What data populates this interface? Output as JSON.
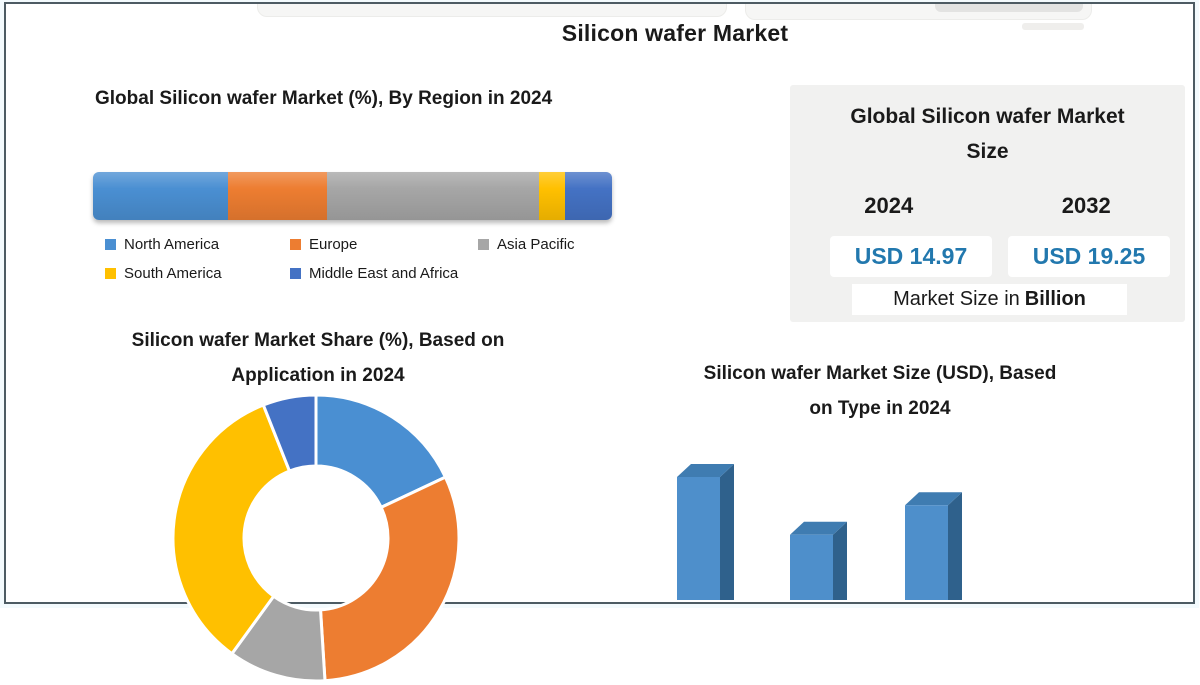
{
  "page": {
    "title": "Silicon wafer Market",
    "frame_color": "#4d5b63"
  },
  "palette": {
    "blue": "#4a8fd2",
    "orange": "#ed7d31",
    "gray": "#a6a6a6",
    "yellow": "#ffc000",
    "navy": "#4472c4",
    "bar3d_front": "#4e8fcb",
    "bar3d_side": "#2f618c",
    "bar3d_top": "#3f7cb1",
    "value_text": "#2278ae"
  },
  "chart_data": [
    {
      "id": "region_share",
      "type": "bar",
      "subtype": "stacked-horizontal",
      "title": "Global Silicon wafer Market (%), By Region in 2024",
      "categories": [
        "North America",
        "Europe",
        "Asia Pacific",
        "South America",
        "Middle East and Africa"
      ],
      "values": [
        26,
        19,
        41,
        5,
        9
      ],
      "unit": "%",
      "colors": [
        "#4a8fd2",
        "#ed7d31",
        "#a6a6a6",
        "#ffc000",
        "#4472c4"
      ],
      "legend_position": "bottom",
      "axis_labels_visible": false
    },
    {
      "id": "application_share",
      "type": "pie",
      "subtype": "donut",
      "title_lines": [
        "Silicon wafer Market Share (%), Based on",
        "Application in 2024"
      ],
      "categories": [
        "",
        "",
        "",
        "",
        ""
      ],
      "values": [
        18,
        31,
        11,
        34,
        6
      ],
      "unit": "%",
      "colors": [
        "#4a8fd2",
        "#ed7d31",
        "#a6a6a6",
        "#ffc000",
        "#4472c4"
      ],
      "note": "slice labels not visible; chart cut off at bottom of image; values estimated from arc angles"
    },
    {
      "id": "type_size",
      "type": "bar",
      "subtype": "3d-column",
      "title_lines": [
        "Silicon wafer Market Size (USD), Based",
        "on Type in 2024"
      ],
      "categories": [
        "",
        "",
        ""
      ],
      "values": [
        100,
        53,
        77
      ],
      "note": "axis and category labels not visible; chart cut off at bottom of image; values are relative heights"
    }
  ],
  "size_panel": {
    "title_line1": "Global Silicon wafer Market",
    "title_line2": "Size",
    "col1_year": "2024",
    "col2_year": "2032",
    "col1_value": "USD 14.97",
    "col2_value": "USD 19.25",
    "footnote_regular": "Market Size in",
    "footnote_bold": "Billion"
  }
}
